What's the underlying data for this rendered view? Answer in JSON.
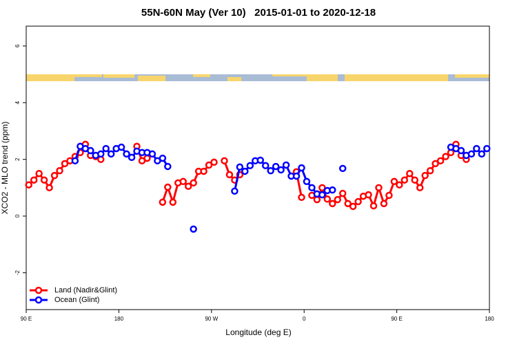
{
  "chart_data": {
    "type": "line",
    "title": "55N-60N May (Ver 10)   2015-01-01 to 2020-12-18",
    "x_label": "Longitude (deg E)",
    "y_label": "XCO2 - MLO trend (ppm)",
    "xlim": [
      90,
      540
    ],
    "xticks": [
      {
        "value": 90,
        "label": "90 E"
      },
      180,
      {
        "value": 270,
        "label": "90 W"
      },
      0,
      {
        "value": 450,
        "label": "90 E"
      },
      {
        "value": 540,
        "label": "180"
      }
    ],
    "ylim": [
      -3.3,
      6.7
    ],
    "yticks": [
      -2,
      0,
      2,
      4,
      6
    ],
    "legend": "bottomleft",
    "x": [
      92.5,
      97.5,
      102.5,
      107.5,
      112.5,
      117.5,
      122.5,
      127.5,
      132.5,
      137.5,
      142.5,
      147.5,
      152.5,
      157.5,
      162.5,
      167.5,
      172.5,
      177.5,
      182.5,
      187.5,
      192.5,
      197.5,
      202.5,
      207.5,
      212.5,
      217.5,
      222.5,
      227.5,
      232.5,
      237.5,
      242.5,
      247.5,
      252.5,
      257.5,
      262.5,
      267.5,
      272.5,
      277.5,
      282.5,
      287.5,
      292.5,
      297.5,
      302.5,
      307.5,
      312.5,
      317.5,
      322.5,
      327.5,
      332.5,
      337.5,
      342.5,
      347.5,
      352.5,
      357.5,
      362.5,
      367.5,
      372.5,
      377.5,
      382.5,
      387.5,
      392.5,
      397.5,
      402.5,
      407.5,
      412.5,
      417.5,
      422.5,
      427.5,
      432.5,
      437.5,
      442.5,
      447.5,
      452.5,
      457.5,
      462.5,
      467.5,
      472.5,
      477.5,
      482.5,
      487.5,
      492.5,
      497.5,
      502.5,
      507.5,
      512.5,
      517.5,
      522.5,
      527.5,
      532.5,
      537.5
    ],
    "series": [
      {
        "name": "Land (Nadir&Glint)",
        "color": "#ff0000",
        "values": [
          1.1,
          1.27,
          1.5,
          1.27,
          1.0,
          1.43,
          1.6,
          1.85,
          1.95,
          2.1,
          2.24,
          2.53,
          2.14,
          2.1,
          2.0,
          null,
          null,
          null,
          null,
          null,
          null,
          2.46,
          1.95,
          2.04,
          null,
          null,
          0.49,
          1.02,
          0.49,
          1.17,
          1.22,
          1.05,
          1.17,
          1.58,
          1.58,
          1.8,
          1.9,
          null,
          1.95,
          1.46,
          1.27,
          1.46,
          null,
          null,
          null,
          null,
          null,
          null,
          null,
          null,
          null,
          null,
          1.56,
          0.66,
          null,
          0.73,
          0.58,
          1.0,
          0.6,
          0.44,
          0.58,
          0.8,
          0.44,
          0.34,
          0.51,
          0.7,
          0.75,
          0.36,
          1.0,
          0.44,
          0.73,
          1.22,
          1.1,
          1.27,
          1.5,
          1.27,
          1.0,
          1.43,
          1.6,
          1.85,
          1.95,
          2.1,
          2.24,
          2.53,
          2.14,
          2.0,
          null,
          null,
          null,
          null
        ]
      },
      {
        "name": "Ocean (Glint)",
        "color": "#0000ff",
        "values": [
          null,
          null,
          null,
          null,
          null,
          null,
          null,
          null,
          null,
          1.95,
          2.46,
          2.38,
          2.31,
          2.14,
          2.19,
          2.38,
          2.19,
          2.38,
          2.43,
          2.19,
          2.07,
          2.29,
          2.24,
          2.24,
          2.19,
          1.95,
          2.04,
          1.75,
          null,
          null,
          null,
          null,
          -0.46,
          null,
          null,
          null,
          null,
          null,
          null,
          null,
          0.88,
          1.73,
          1.58,
          1.78,
          1.95,
          1.97,
          1.78,
          1.6,
          1.75,
          1.63,
          1.8,
          1.41,
          1.41,
          1.7,
          1.22,
          1.0,
          0.78,
          0.75,
          0.9,
          0.92,
          null,
          1.68,
          null,
          null,
          null,
          null,
          null,
          null,
          null,
          null,
          null,
          null,
          null,
          null,
          null,
          null,
          null,
          null,
          null,
          null,
          null,
          null,
          2.43,
          2.38,
          2.31,
          2.14,
          2.19,
          2.38,
          2.19,
          2.38
        ]
      }
    ]
  }
}
